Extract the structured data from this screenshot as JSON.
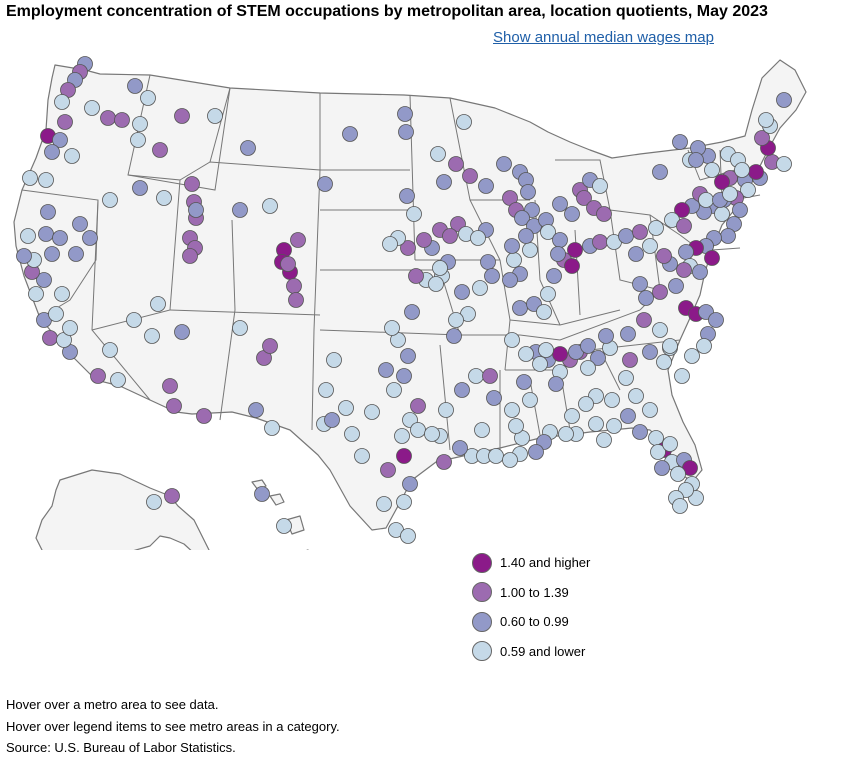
{
  "title": "Employment concentration of STEM occupations by metropolitan area, location quotients, May 2023",
  "link_label": "Show annual median wages map",
  "legend": [
    {
      "label": "1.40 and higher",
      "color": "#8b1a89"
    },
    {
      "label": "1.00 to 1.39",
      "color": "#9c6bb0"
    },
    {
      "label": "0.60 to 0.99",
      "color": "#9299c8"
    },
    {
      "label": "0.59 and lower",
      "color": "#c5d9e8"
    }
  ],
  "notes": [
    "Hover over a metro area to see data.",
    "Hover over legend items to see metro areas in a category.",
    "Source: U.S. Bureau of Labor Statistics."
  ],
  "colors": {
    "land": "#f4f4f4",
    "border": "#777777",
    "point_stroke": "#555555"
  }
}
